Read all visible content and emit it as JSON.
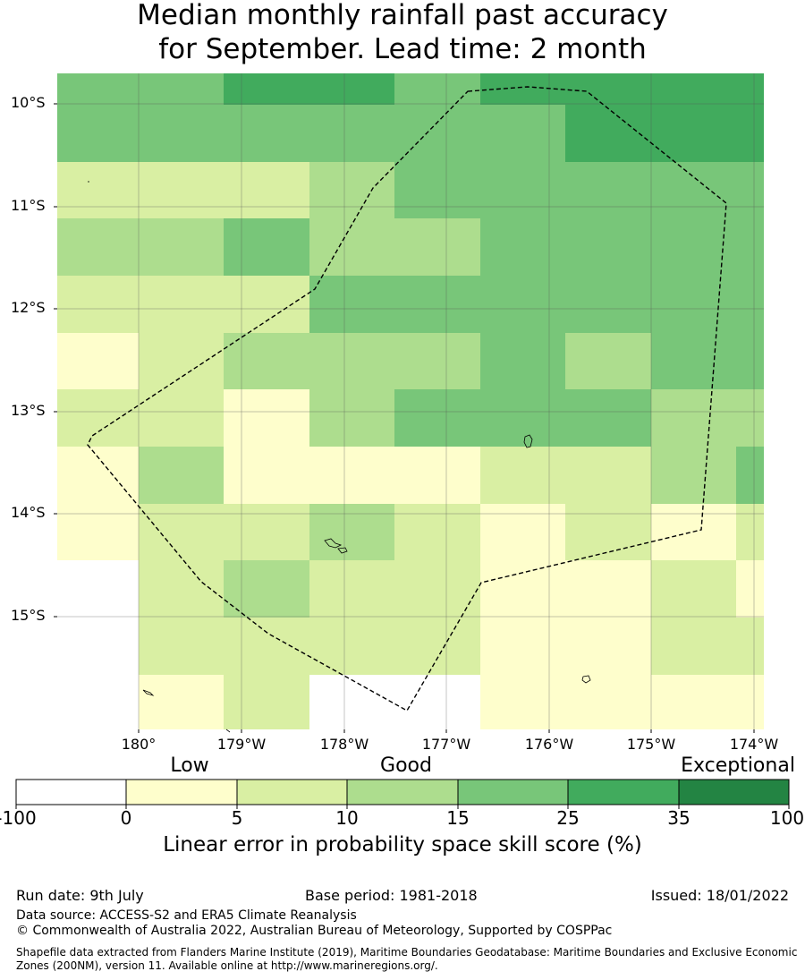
{
  "title": {
    "line1": "Median monthly rainfall past accuracy",
    "line2": "for September. Lead time: 2 month"
  },
  "map": {
    "lat_labels": [
      "10°S",
      "11°S",
      "12°S",
      "13°S",
      "14°S",
      "15°S"
    ],
    "lon_labels": [
      "180°",
      "179°W",
      "178°W",
      "177°W",
      "176°W",
      "175°W",
      "174°W"
    ],
    "boundary_style": "dashed black line (Exclusive Economic Zone)",
    "color_scale": [
      "#ffffff",
      "#fefecc",
      "#d9efa3",
      "#addd8e",
      "#78c679",
      "#41ab5d",
      "#238443"
    ],
    "grid_class_rows": [
      [
        4,
        4,
        5,
        5,
        4,
        5,
        5,
        5,
        5
      ],
      [
        4,
        4,
        4,
        4,
        4,
        4,
        5,
        5,
        5
      ],
      [
        2,
        2,
        2,
        3,
        4,
        4,
        4,
        4,
        4
      ],
      [
        3,
        3,
        4,
        3,
        3,
        4,
        4,
        4,
        4
      ],
      [
        2,
        2,
        2,
        4,
        4,
        4,
        4,
        4,
        4
      ],
      [
        1,
        2,
        3,
        3,
        3,
        4,
        3,
        4,
        4
      ],
      [
        2,
        2,
        1,
        3,
        4,
        4,
        4,
        3,
        3
      ],
      [
        1,
        3,
        1,
        1,
        1,
        2,
        2,
        3,
        4
      ],
      [
        1,
        2,
        2,
        3,
        2,
        1,
        2,
        1,
        2
      ],
      [
        0,
        2,
        3,
        2,
        2,
        1,
        1,
        2,
        1
      ],
      [
        0,
        2,
        2,
        2,
        2,
        1,
        1,
        2,
        2
      ],
      [
        0,
        1,
        2,
        0,
        0,
        1,
        1,
        1,
        1
      ]
    ]
  },
  "legend": {
    "categories": [
      "Low",
      "Good",
      "Exceptional"
    ],
    "ticks": [
      "-100",
      "0",
      "5",
      "10",
      "15",
      "25",
      "35",
      "100"
    ],
    "title": "Linear error in probability space skill score (%)"
  },
  "footer": {
    "run_date": "Run date: 9th July",
    "base_period": "Base period: 1981-2018",
    "issued": "Issued: 18/01/2022",
    "data_source": "Data source: ACCESS-S2 and ERA5 Climate Reanalysis",
    "copyright": "© Commonwealth of Australia 2022, Australian Bureau of Meteorology, Supported by COSPPac",
    "shapefile_note": "Shapefile data extracted from Flanders Marine Institute (2019), Maritime Boundaries Geodatabase: Maritime Boundaries and Exclusive Economic Zones (200NM), version 11. Available online at http://www.marineregions.org/."
  }
}
